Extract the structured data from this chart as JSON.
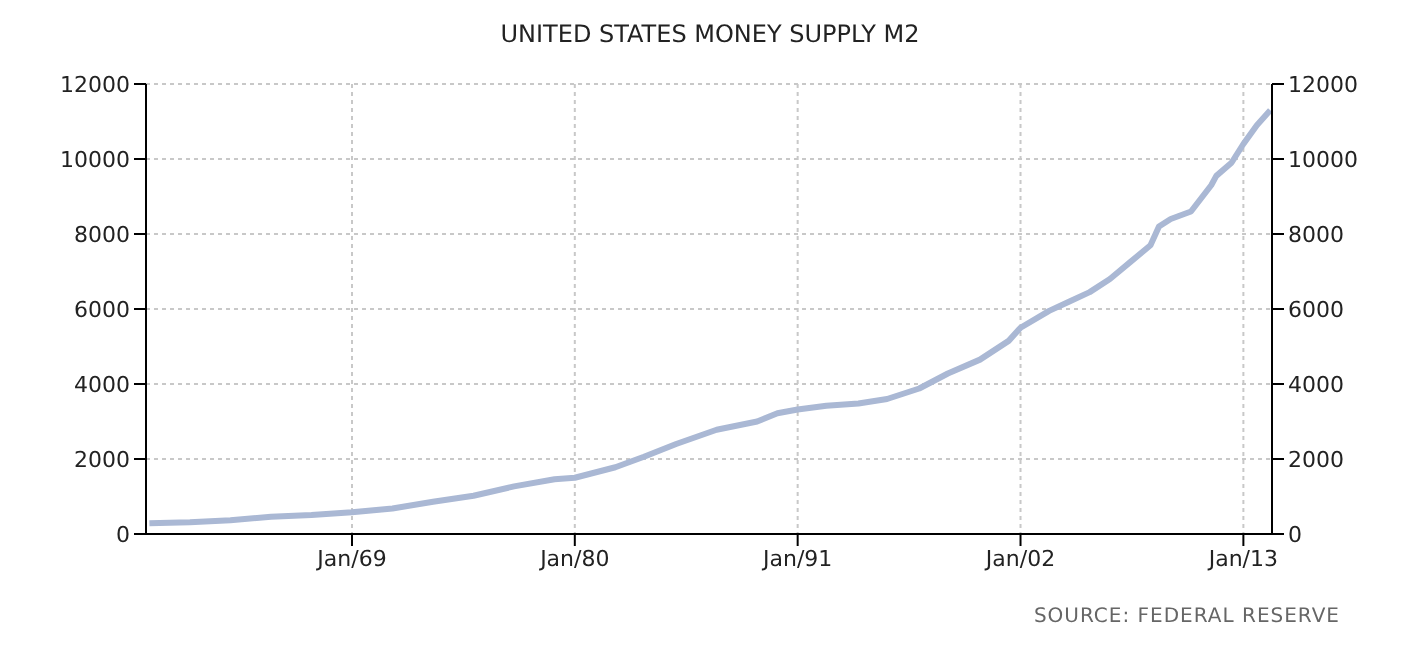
{
  "chart_data": {
    "type": "line",
    "title": "UNITED STATES MONEY SUPPLY M2",
    "annotations": [
      "SOURCE: FEDERAL RESERVE"
    ],
    "x": [
      "1959-01",
      "1961-01",
      "1963-01",
      "1965-01",
      "1967-01",
      "1969-01",
      "1971-01",
      "1973-01",
      "1975-01",
      "1977-01",
      "1979-01",
      "1980-01",
      "1982-01",
      "1983-06",
      "1985-01",
      "1987-01",
      "1989-01",
      "1990-01",
      "1991-01",
      "1992-06",
      "1994-01",
      "1995-06",
      "1997-01",
      "1998-06",
      "2000-01",
      "2001-06",
      "2002-01",
      "2003-06",
      "2004-06",
      "2005-06",
      "2006-06",
      "2007-06",
      "2008-06",
      "2008-11",
      "2009-06",
      "2010-06",
      "2011-06",
      "2011-09",
      "2012-06",
      "2013-01",
      "2013-09",
      "2014-05"
    ],
    "series": [
      {
        "color": "#aab8d4",
        "values": [
          290,
          315,
          365,
          460,
          505,
          580,
          680,
          860,
          1020,
          1270,
          1460,
          1500,
          1780,
          2060,
          2400,
          2780,
          3000,
          3220,
          3320,
          3420,
          3480,
          3600,
          3880,
          4280,
          4650,
          5150,
          5500,
          5950,
          6200,
          6450,
          6800,
          7250,
          7700,
          8200,
          8400,
          8600,
          9300,
          9550,
          9900,
          10400,
          10900,
          11300
        ]
      }
    ],
    "xlim": [
      "1958-11",
      "2014-06"
    ],
    "xticks": [
      {
        "value": "1969-01",
        "label": "Jan/69"
      },
      {
        "value": "1980-01",
        "label": "Jan/80"
      },
      {
        "value": "1991-01",
        "label": "Jan/91"
      },
      {
        "value": "2002-01",
        "label": "Jan/02"
      },
      {
        "value": "2013-01",
        "label": "Jan/13"
      }
    ],
    "ylim": [
      0,
      12000
    ],
    "yticks": [
      0,
      2000,
      4000,
      6000,
      8000,
      10000,
      12000
    ],
    "y2lim": [
      0,
      12000
    ],
    "y2ticks": [
      0,
      2000,
      4000,
      6000,
      8000,
      10000,
      12000
    ],
    "grid": true,
    "legend": false,
    "marker": "none",
    "line_style": "solid"
  }
}
